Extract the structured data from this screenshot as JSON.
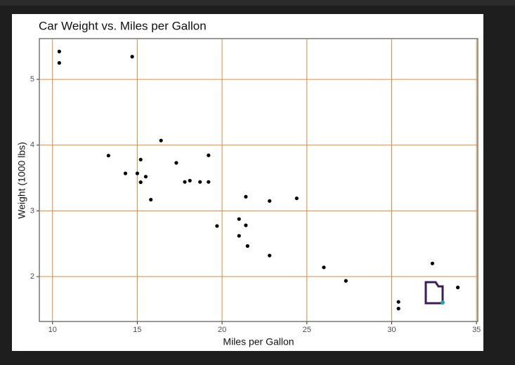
{
  "chart_data": {
    "type": "scatter",
    "title": "Car Weight vs. Miles per Gallon",
    "x_label": "Miles per Gallon",
    "y_label": "Weight (1000 lbs)",
    "x": [
      21,
      21,
      22.8,
      21.4,
      18.7,
      18.1,
      14.3,
      24.4,
      22.8,
      19.2,
      17.8,
      16.4,
      17.3,
      15.2,
      10.4,
      10.4,
      14.7,
      32.4,
      30.4,
      33.9,
      21.5,
      15.5,
      15.2,
      13.3,
      19.2,
      27.3,
      26,
      30.4,
      15.8,
      19.7,
      15,
      21.4
    ],
    "values": [
      2.62,
      2.875,
      2.32,
      3.215,
      3.44,
      3.46,
      3.57,
      3.19,
      3.15,
      3.44,
      3.44,
      4.07,
      3.73,
      3.78,
      5.25,
      5.424,
      5.345,
      2.2,
      1.615,
      1.835,
      2.465,
      3.52,
      3.435,
      3.84,
      3.845,
      1.935,
      2.14,
      1.513,
      3.17,
      2.77,
      3.57,
      2.78
    ],
    "color": "#000000",
    "grid_color": "#e08a3c",
    "xlim": [
      9.225,
      35.075
    ],
    "xticks": [
      10,
      15,
      20,
      25,
      30,
      35
    ],
    "ylim": [
      1.317,
      5.62
    ],
    "yticks": [
      2,
      3,
      4,
      5
    ],
    "grid": true
  }
}
